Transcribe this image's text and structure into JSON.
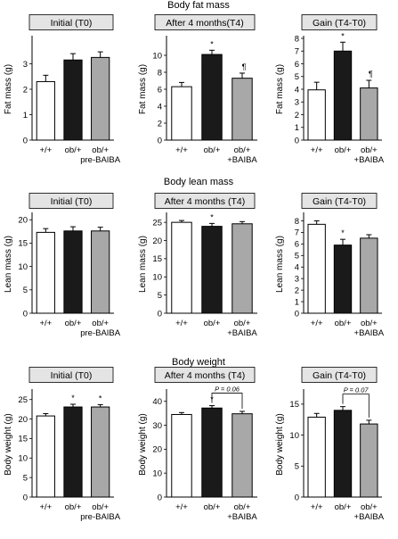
{
  "sections": [
    {
      "title": "Body fat mass",
      "ylabel": "Fat mass (g)",
      "panels": [
        {
          "title": "Initial (T0)",
          "chart_data": {
            "type": "bar",
            "categories": [
              "+/+",
              "ob/+",
              "ob/+\npre-BAIBA"
            ],
            "values": [
              2.3,
              3.15,
              3.25
            ],
            "errors": [
              0.25,
              0.25,
              0.22
            ],
            "ylim": [
              0,
              4
            ],
            "yticks": [
              0,
              1,
              2,
              3
            ],
            "annotations": [
              "",
              "",
              ""
            ],
            "bracket": null
          }
        },
        {
          "title": "After 4 months(T4)",
          "chart_data": {
            "type": "bar",
            "categories": [
              "+/+",
              "ob/+",
              "ob/+\n+BAIBA"
            ],
            "values": [
              6.3,
              10.1,
              7.3
            ],
            "errors": [
              0.5,
              0.5,
              0.6
            ],
            "ylim": [
              0,
              12
            ],
            "yticks": [
              0,
              2,
              4,
              6,
              8,
              10
            ],
            "annotations": [
              "",
              "*",
              "¶"
            ],
            "bracket": null
          }
        },
        {
          "title": "Gain (T4-T0)",
          "chart_data": {
            "type": "bar",
            "categories": [
              "+/+",
              "ob/+",
              "ob/+\n+BAIBA"
            ],
            "values": [
              3.95,
              7.0,
              4.1
            ],
            "errors": [
              0.6,
              0.7,
              0.6
            ],
            "ylim": [
              0,
              8
            ],
            "yticks": [
              0,
              1,
              2,
              3,
              4,
              5,
              6,
              7,
              8
            ],
            "annotations": [
              "",
              "*",
              "¶"
            ],
            "bracket": null
          }
        }
      ]
    },
    {
      "title": "Body lean mass",
      "ylabel": "Lean mass (g)",
      "panels": [
        {
          "title": "Initial (T0)",
          "chart_data": {
            "type": "bar",
            "categories": [
              "+/+",
              "ob/+",
              "ob/+\npre-BAIBA"
            ],
            "values": [
              17.3,
              17.6,
              17.6
            ],
            "errors": [
              0.8,
              0.9,
              0.8
            ],
            "ylim": [
              0,
              21
            ],
            "yticks": [
              0,
              5,
              10,
              15,
              20
            ],
            "annotations": [
              "",
              "",
              ""
            ],
            "bracket": null
          }
        },
        {
          "title": "After 4 months (T4)",
          "chart_data": {
            "type": "bar",
            "categories": [
              "+/+",
              "ob/+",
              "ob/+\n+BAIBA"
            ],
            "values": [
              25.0,
              23.9,
              24.6
            ],
            "errors": [
              0.5,
              0.8,
              0.6
            ],
            "ylim": [
              0,
              27
            ],
            "yticks": [
              0,
              5,
              10,
              15,
              20,
              25
            ],
            "annotations": [
              "",
              "*",
              ""
            ],
            "bracket": null
          }
        },
        {
          "title": "Gain (T4-T0)",
          "chart_data": {
            "type": "bar",
            "categories": [
              "+/+",
              "ob/+",
              "ob/+\n+BAIBA"
            ],
            "values": [
              7.7,
              5.9,
              6.5
            ],
            "errors": [
              0.3,
              0.5,
              0.3
            ],
            "ylim": [
              0,
              8.5
            ],
            "yticks": [
              0,
              1,
              2,
              3,
              4,
              5,
              6,
              7,
              8
            ],
            "annotations": [
              "",
              "*",
              ""
            ],
            "bracket": null
          }
        }
      ]
    },
    {
      "title": "Body weight",
      "ylabel": "Body weight (g)",
      "panels": [
        {
          "title": "Initial (T0)",
          "chart_data": {
            "type": "bar",
            "categories": [
              "+/+",
              "ob/+",
              "ob/+\npre-BAIBA"
            ],
            "values": [
              20.8,
              23.1,
              23.1
            ],
            "errors": [
              0.6,
              0.7,
              0.6
            ],
            "ylim": [
              0,
              27
            ],
            "yticks": [
              0,
              5,
              10,
              15,
              20,
              25
            ],
            "annotations": [
              "",
              "*",
              "*"
            ],
            "bracket": null
          }
        },
        {
          "title": "After 4 months (T4)",
          "chart_data": {
            "type": "bar",
            "categories": [
              "+/+",
              "ob/+",
              "ob/+\n+BAIBA"
            ],
            "values": [
              34.5,
              37.2,
              34.8
            ],
            "errors": [
              0.8,
              1.0,
              1.0
            ],
            "ylim": [
              0,
              44
            ],
            "yticks": [
              0,
              10,
              20,
              30,
              40
            ],
            "annotations": [
              "",
              "*",
              ""
            ],
            "bracket": {
              "from": 1,
              "to": 2,
              "label": "P = 0.06"
            }
          }
        },
        {
          "title": "Gain (T4-T0)",
          "chart_data": {
            "type": "bar",
            "categories": [
              "+/+",
              "ob/+",
              "ob/+\n+BAIBA"
            ],
            "values": [
              12.9,
              14.0,
              11.8
            ],
            "errors": [
              0.6,
              0.6,
              0.6
            ],
            "ylim": [
              0,
              17
            ],
            "yticks": [
              0,
              5,
              10,
              15
            ],
            "annotations": [
              "",
              "",
              ""
            ],
            "bracket": {
              "from": 1,
              "to": 2,
              "label": "P = 0.07"
            }
          }
        }
      ]
    }
  ],
  "colors": {
    "series": [
      "#ffffff",
      "#1a1a1a",
      "#a8a8a8"
    ],
    "title_box_fill": "#e4e4e4",
    "stroke": "#000000"
  }
}
